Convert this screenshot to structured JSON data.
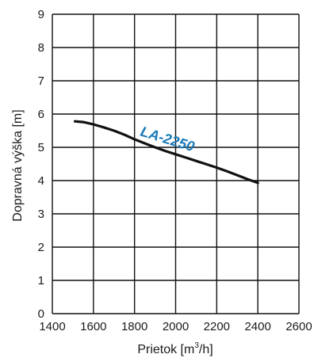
{
  "chart_data": {
    "type": "line",
    "xlabel_main": "Prietok [m",
    "xlabel_sup": "3",
    "xlabel_end": "/h]",
    "ylabel": "Dopravná výška [m]",
    "xlim": [
      1400,
      2600
    ],
    "ylim": [
      0,
      9
    ],
    "x_ticks": [
      "1400",
      "1600",
      "1800",
      "2000",
      "2200",
      "2400",
      "2600"
    ],
    "y_ticks": [
      "0",
      "1",
      "2",
      "3",
      "4",
      "5",
      "6",
      "7",
      "8",
      "9"
    ],
    "grid": true,
    "series": [
      {
        "name": "LA-2250",
        "color": "#1a7ab8",
        "line_color": "#111111",
        "x": [
          1510,
          1550,
          1600,
          1650,
          1700,
          1750,
          1800,
          1850,
          1900,
          1950,
          2000,
          2050,
          2100,
          2150,
          2200,
          2250,
          2300,
          2350,
          2400
        ],
        "y": [
          5.78,
          5.76,
          5.69,
          5.6,
          5.5,
          5.38,
          5.24,
          5.12,
          5.0,
          4.89,
          4.79,
          4.69,
          4.59,
          4.49,
          4.39,
          4.28,
          4.16,
          4.04,
          3.93
        ]
      }
    ]
  }
}
